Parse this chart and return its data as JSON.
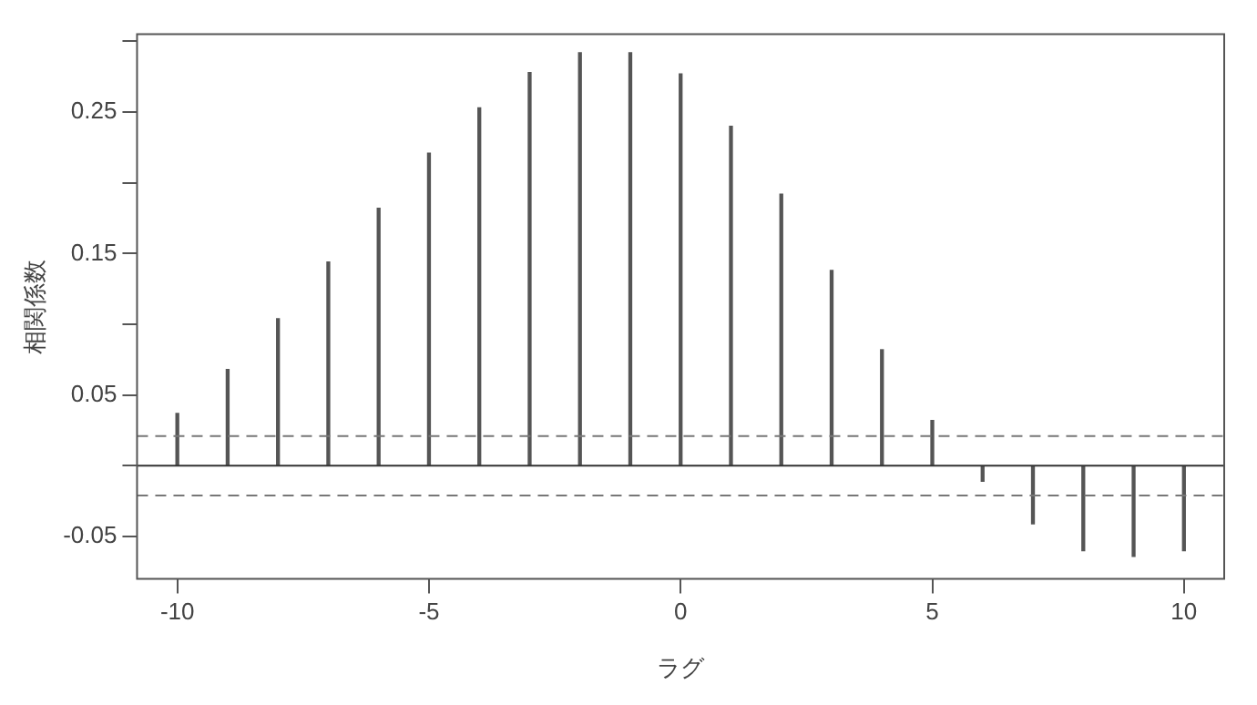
{
  "chart_data": {
    "type": "bar",
    "xlabel": "ラグ",
    "ylabel": "相関係数",
    "x": [
      -10,
      -9,
      -8,
      -7,
      -6,
      -5,
      -4,
      -3,
      -2,
      -1,
      0,
      1,
      2,
      3,
      4,
      5,
      6,
      7,
      8,
      9,
      10
    ],
    "values": [
      0.037,
      0.068,
      0.104,
      0.144,
      0.182,
      0.221,
      0.253,
      0.278,
      0.292,
      0.292,
      0.277,
      0.24,
      0.192,
      0.138,
      0.082,
      0.032,
      -0.011,
      -0.041,
      -0.06,
      -0.064,
      -0.06
    ],
    "color": "#555555",
    "xlim": [
      -10.8,
      10.8
    ],
    "xticks": [
      -10,
      -5,
      0,
      5,
      10
    ],
    "ylim": [
      -0.08,
      0.305
    ],
    "yticks": [
      {
        "value": -0.05,
        "label": "-0.05"
      },
      {
        "value": 0,
        "label": null
      },
      {
        "value": 0.05,
        "label": "0.05"
      },
      {
        "value": 0.1,
        "label": null
      },
      {
        "value": 0.15,
        "label": "0.15"
      },
      {
        "value": 0.2,
        "label": null
      },
      {
        "value": 0.25,
        "label": "0.25"
      },
      {
        "value": 0.3,
        "label": null
      }
    ],
    "ref_lines": [
      {
        "axis": "y",
        "value": 0,
        "color": "#333333",
        "line_style": "solid"
      },
      {
        "axis": "y",
        "value": 0.021,
        "color": "#777777",
        "line_style": "dashed"
      },
      {
        "axis": "y",
        "value": -0.021,
        "color": "#777777",
        "line_style": "dashed"
      }
    ],
    "grid": false,
    "legend": false
  }
}
